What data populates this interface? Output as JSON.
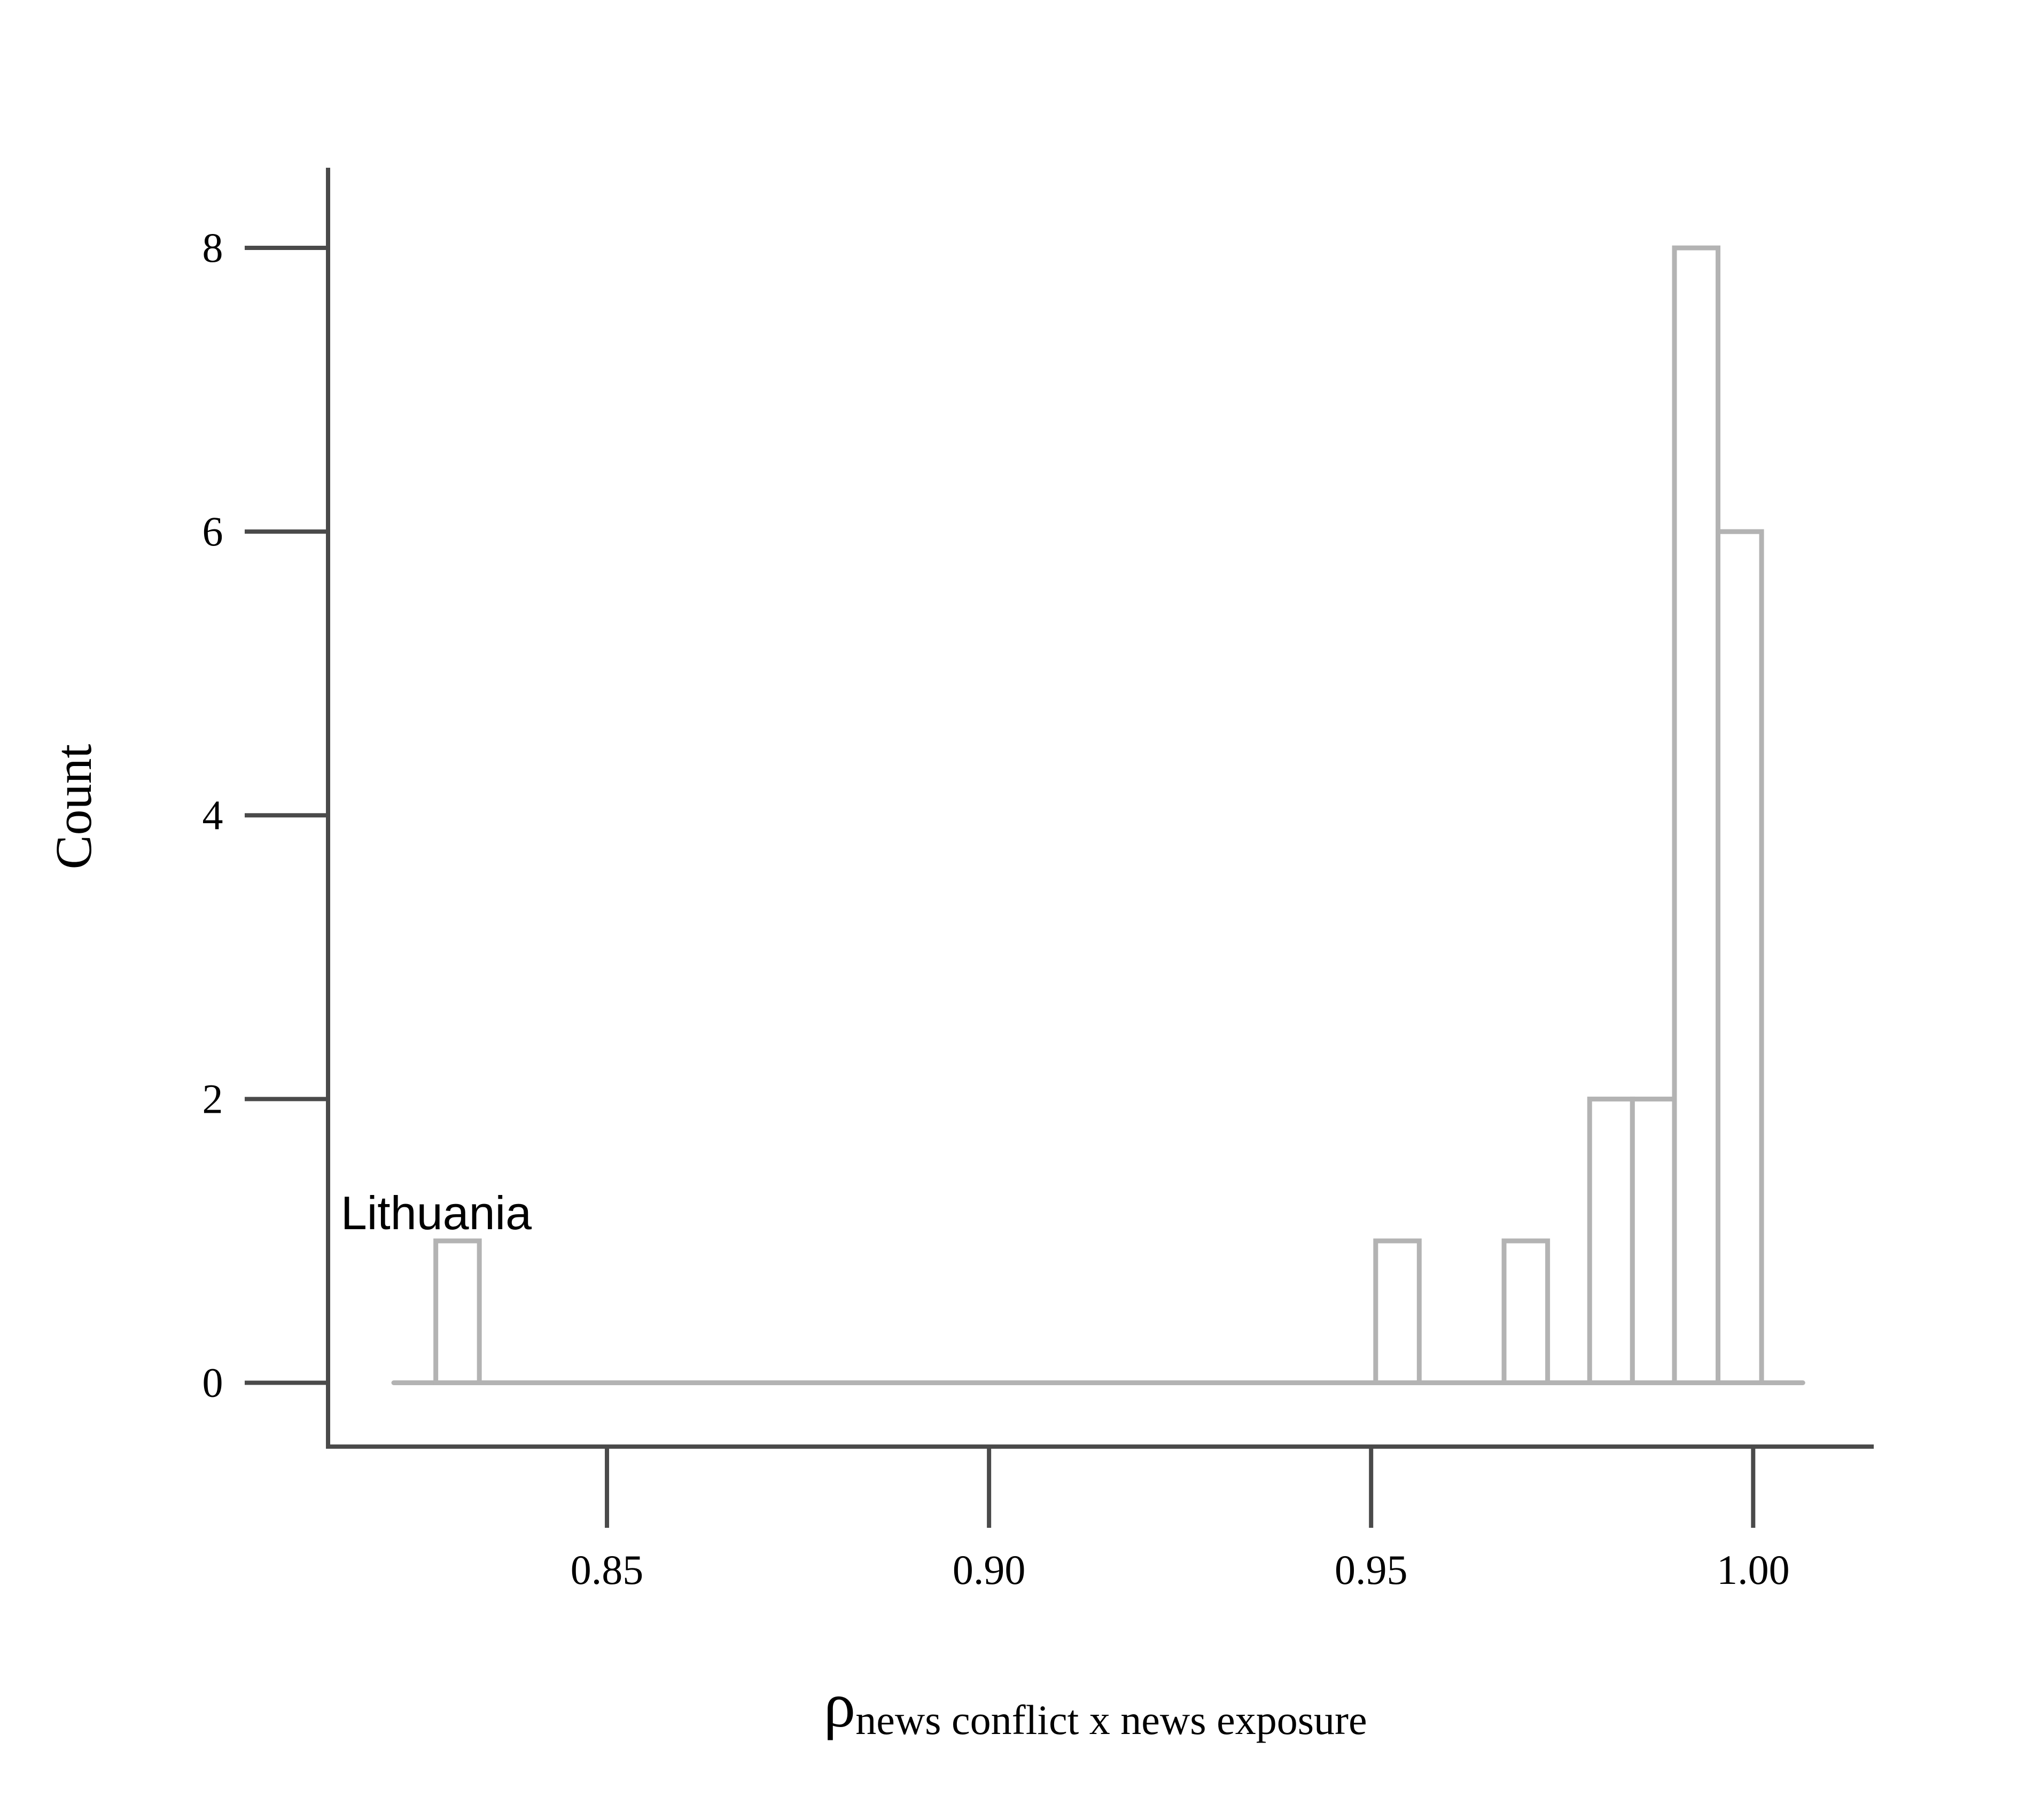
{
  "chart_data": {
    "type": "bar",
    "xlabel": {
      "symbol": "ρ",
      "subscript": "news conflict x news exposure"
    },
    "ylabel": "Count",
    "x_ticks": [
      "0.85",
      "0.90",
      "0.95",
      "1.00"
    ],
    "y_ticks": [
      "0",
      "2",
      "4",
      "6",
      "8"
    ],
    "xlim": [
      0.8135,
      1.0155
    ],
    "ylim": [
      -0.45,
      8.55
    ],
    "grid": false,
    "bin_width": 0.0057,
    "bins": [
      {
        "x0": 0.8276,
        "x1": 0.8333,
        "count": 1
      },
      {
        "x0": 0.9506,
        "x1": 0.9563,
        "count": 1
      },
      {
        "x0": 0.9674,
        "x1": 0.9731,
        "count": 1
      },
      {
        "x0": 0.9786,
        "x1": 0.9842,
        "count": 2
      },
      {
        "x0": 0.9842,
        "x1": 0.9897,
        "count": 2
      },
      {
        "x0": 0.9897,
        "x1": 0.9954,
        "count": 8
      },
      {
        "x0": 0.9954,
        "x1": 1.0011,
        "count": 6
      }
    ],
    "baseline_range": [
      0.8221,
      1.0065
    ],
    "annotations": [
      {
        "text": "Lithuania",
        "bin_index": 0
      }
    ]
  }
}
